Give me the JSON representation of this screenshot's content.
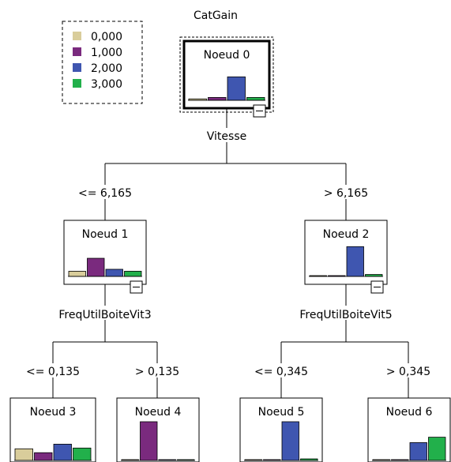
{
  "tree": {
    "target_title": "CatGain",
    "legend": [
      {
        "label": "0,000",
        "color": "#d9cd9b"
      },
      {
        "label": "1,000",
        "color": "#7a2a7e"
      },
      {
        "label": "2,000",
        "color": "#3f56b0"
      },
      {
        "label": "3,000",
        "color": "#22b04b"
      }
    ],
    "nodes": [
      {
        "id": 0,
        "label": "Noeud 0",
        "distribution": [
          0.04,
          0.08,
          0.66,
          0.08
        ]
      },
      {
        "id": 1,
        "label": "Noeud 1",
        "distribution": [
          0.16,
          0.56,
          0.22,
          0.16
        ]
      },
      {
        "id": 2,
        "label": "Noeud 2",
        "distribution": [
          0.0,
          0.0,
          0.92,
          0.06
        ]
      },
      {
        "id": 3,
        "label": "Noeud 3",
        "distribution": [
          0.3,
          0.2,
          0.42,
          0.32
        ]
      },
      {
        "id": 4,
        "label": "Noeud 4",
        "distribution": [
          0.0,
          1.0,
          0.0,
          0.0
        ]
      },
      {
        "id": 5,
        "label": "Noeud 5",
        "distribution": [
          0.0,
          0.0,
          1.0,
          0.04
        ]
      },
      {
        "id": 6,
        "label": "Noeud 6",
        "distribution": [
          0.0,
          0.0,
          0.46,
          0.6
        ]
      }
    ],
    "splits": [
      {
        "variable": "Vitesse",
        "left_condition": "<= 6,165",
        "right_condition": "> 6,165"
      },
      {
        "variable": "FreqUtilBoiteVit3",
        "left_condition": "<= 0,135",
        "right_condition": "> 0,135"
      },
      {
        "variable": "FreqUtilBoiteVit5",
        "left_condition": "<= 0,345",
        "right_condition": "> 0,345"
      }
    ]
  }
}
